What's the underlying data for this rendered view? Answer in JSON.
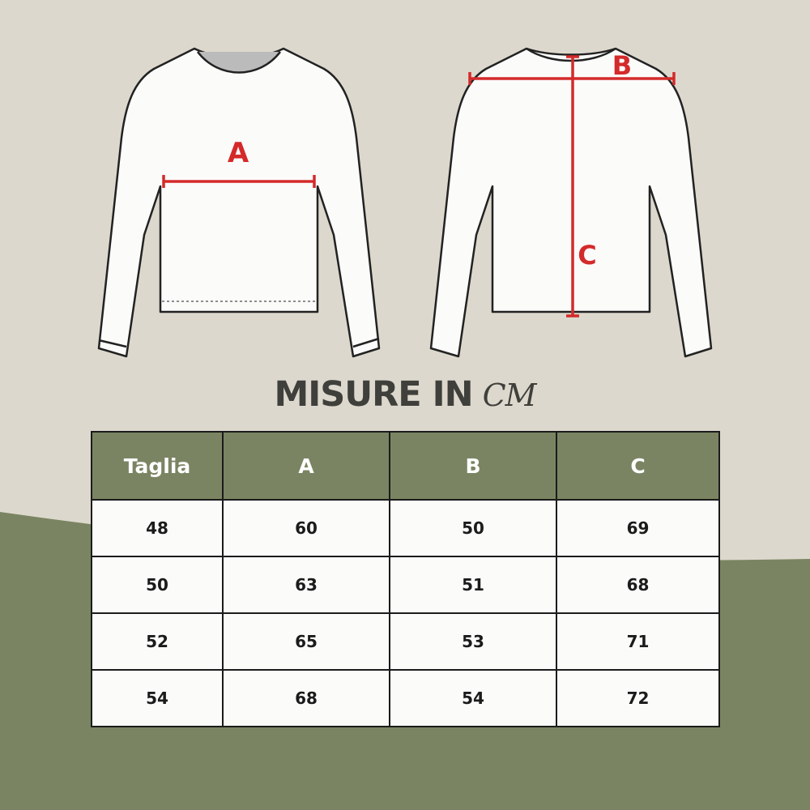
{
  "colors": {
    "background": "#ddd8cd",
    "accent_green": "#7a8462",
    "measure_red": "#d42a2a",
    "text_dark": "#3f3f3b"
  },
  "diagram": {
    "front_label": "A",
    "back_label_width": "B",
    "back_label_length": "C"
  },
  "title": {
    "text": "MISURE IN",
    "unit": "CM"
  },
  "table": {
    "headers": [
      "Taglia",
      "A",
      "B",
      "C"
    ],
    "rows": [
      [
        "48",
        "60",
        "50",
        "69"
      ],
      [
        "50",
        "63",
        "51",
        "68"
      ],
      [
        "52",
        "65",
        "53",
        "71"
      ],
      [
        "54",
        "68",
        "54",
        "72"
      ]
    ]
  }
}
